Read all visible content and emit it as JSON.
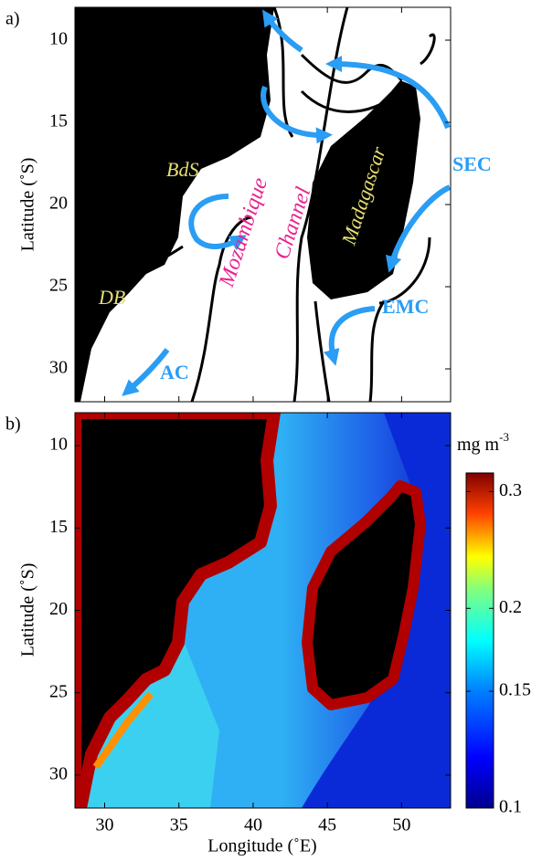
{
  "panels": [
    {
      "label": "a)",
      "annotations": [
        "BdS",
        "DB",
        "Mozambique",
        "Channel",
        "Madagascar",
        "SEC",
        "EMC",
        "AC"
      ]
    },
    {
      "label": "b)"
    }
  ],
  "x_axis": {
    "label": "Longitude (˚E)",
    "xlim": [
      28,
      53.3
    ],
    "xticks": [
      30,
      35,
      40,
      45,
      50
    ]
  },
  "y_axis": {
    "label": "Latitude (˚S)",
    "ylim": [
      8,
      32
    ],
    "yticks": [
      10,
      15,
      20,
      25,
      30
    ]
  },
  "colorbar": {
    "unit": "mg m",
    "unit_exponent": "-3",
    "scale": "log",
    "clim": [
      0.1,
      0.32
    ],
    "ticks": [
      0.1,
      0.15,
      0.2,
      0.3
    ]
  }
}
